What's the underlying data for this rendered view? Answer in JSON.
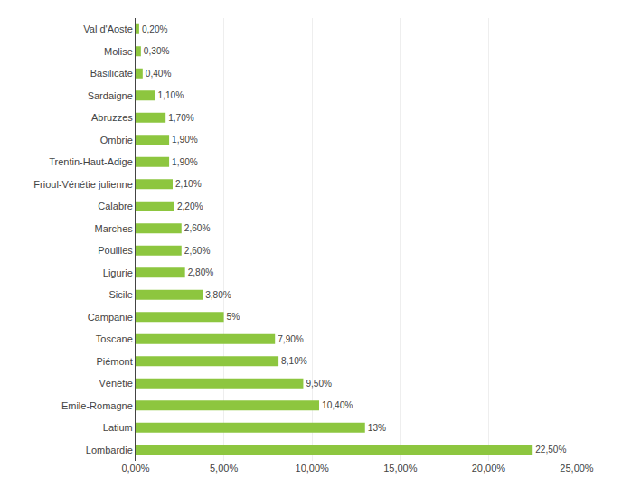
{
  "chart_data": {
    "type": "bar",
    "orientation": "horizontal",
    "categories": [
      "Lombardie",
      "Latium",
      "Emile-Romagne",
      "Vénétie",
      "Piémont",
      "Toscane",
      "Campanie",
      "Sicile",
      "Ligurie",
      "Pouilles",
      "Marches",
      "Calabre",
      "Frioul-Vénétie julienne",
      "Trentin-Haut-Adige",
      "Ombrie",
      "Abruzzes",
      "Sardaigne",
      "Basilicate",
      "Molise",
      "Val d'Aoste"
    ],
    "values": [
      22.5,
      13.0,
      10.4,
      9.5,
      8.1,
      7.9,
      5.0,
      3.8,
      2.8,
      2.6,
      2.6,
      2.2,
      2.1,
      1.9,
      1.9,
      1.7,
      1.1,
      0.4,
      0.3,
      0.2
    ],
    "value_labels": [
      "22,50%",
      "13%",
      "10,40%",
      "9,50%",
      "8,10%",
      "7,90%",
      "5%",
      "3,80%",
      "2,80%",
      "2,60%",
      "2,60%",
      "2,20%",
      "2,10%",
      "1,90%",
      "1,90%",
      "1,70%",
      "1,10%",
      "0,40%",
      "0,30%",
      "0,20%"
    ],
    "data_labels": true,
    "color": "#8DC63F",
    "xlim": [
      0,
      25.0
    ],
    "xticks": [
      {
        "value": 0,
        "label": "0,00%"
      },
      {
        "value": 5.0,
        "label": "5,00%"
      },
      {
        "value": 10.0,
        "label": "10,00%"
      },
      {
        "value": 15.0,
        "label": "15,00%"
      },
      {
        "value": 20.0,
        "label": "20,00%"
      },
      {
        "value": 25.0,
        "label": "25,00%"
      }
    ],
    "grid": true
  }
}
